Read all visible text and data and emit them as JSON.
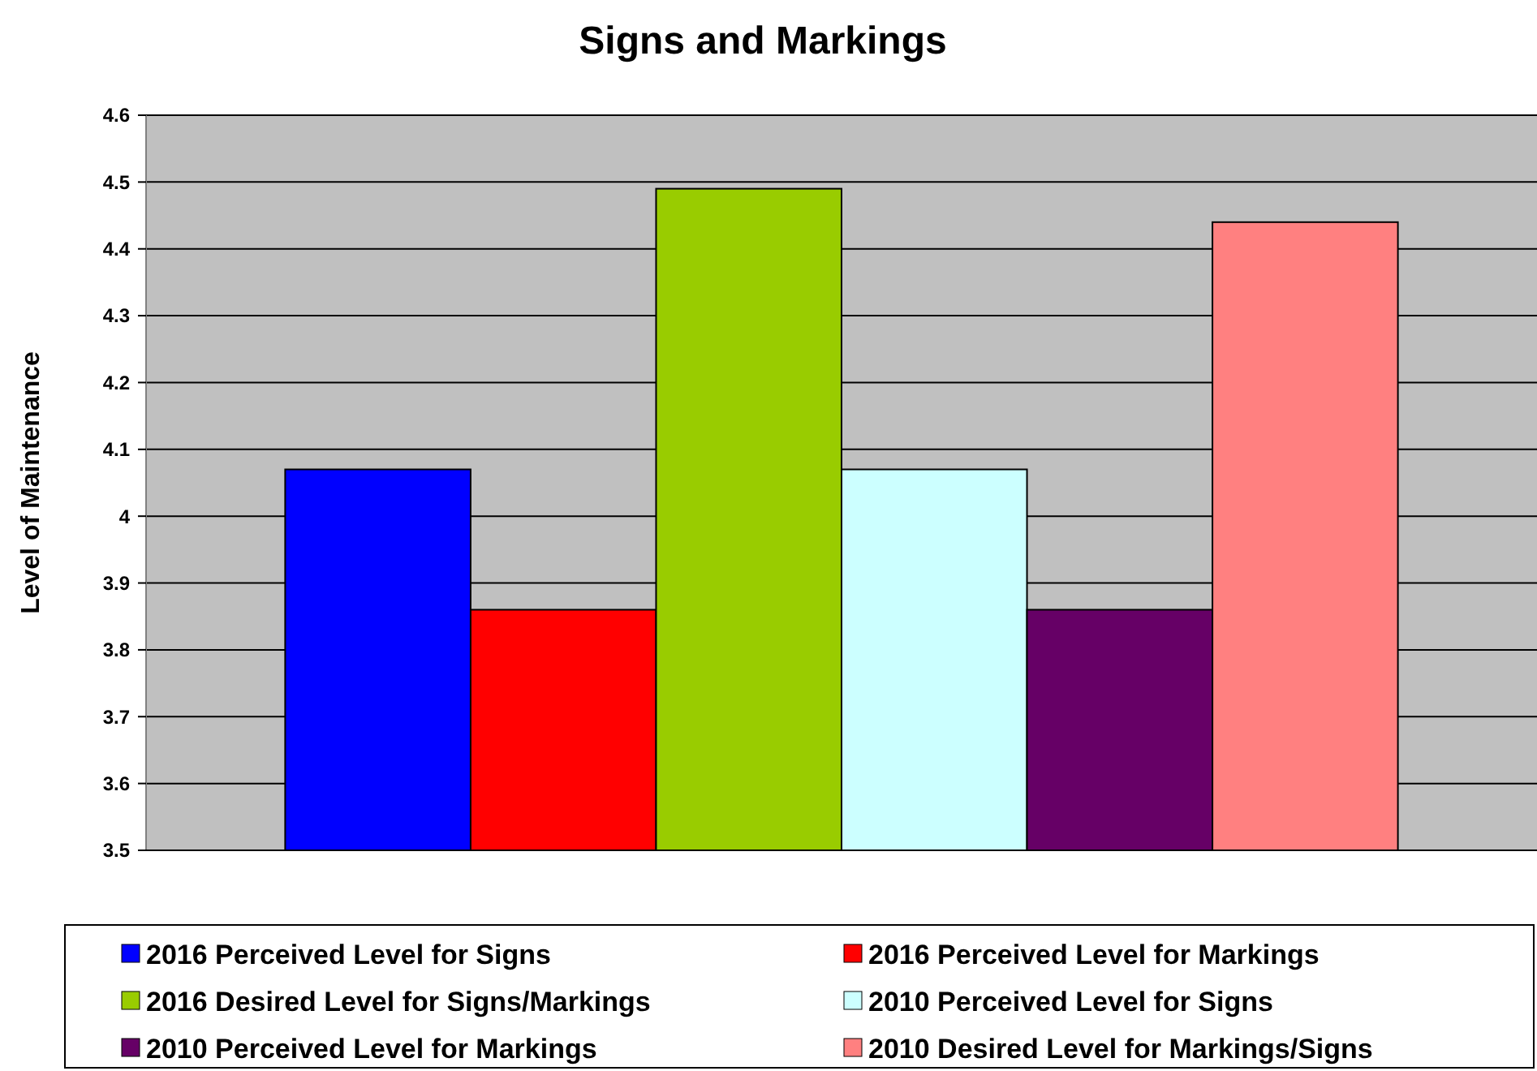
{
  "chart_data": {
    "type": "bar",
    "title": "Signs and Markings",
    "ylabel": "Level of Maintenance",
    "categories": [
      null
    ],
    "series": [
      {
        "name": "2016 Perceived Level for Signs",
        "color": "#0000ff",
        "values": [
          4.07
        ]
      },
      {
        "name": "2016 Perceived Level for Markings",
        "color": "#ff0000",
        "values": [
          3.86
        ]
      },
      {
        "name": "2016 Desired Level for Signs/Markings",
        "color": "#99cc00",
        "values": [
          4.49
        ]
      },
      {
        "name": "2010 Perceived Level for Signs",
        "color": "#ccffff",
        "values": [
          4.07
        ]
      },
      {
        "name": "2010 Perceived Level for Markings",
        "color": "#660066",
        "values": [
          3.86
        ]
      },
      {
        "name": "2010 Desired Level for Markings/Signs",
        "color": "#ff8080",
        "values": [
          4.44
        ]
      }
    ],
    "ylim": [
      3.5,
      4.6
    ],
    "yticks": [
      3.5,
      3.6,
      3.7,
      3.8,
      3.9,
      4,
      4.1,
      4.2,
      4.3,
      4.4,
      4.5,
      4.6
    ],
    "grid": "y",
    "legend": "bottom"
  }
}
